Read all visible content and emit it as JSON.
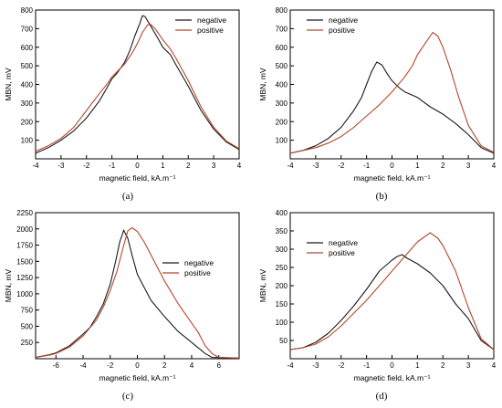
{
  "chart_data": [
    {
      "type": "line",
      "caption": "(a)",
      "xlabel": "magnetic field, kA.m⁻¹",
      "ylabel": "MBN, mV",
      "xlim": [
        -4,
        4
      ],
      "ylim": [
        0,
        800
      ],
      "xticks": [
        -4,
        -3,
        -2,
        -1,
        0,
        1,
        2,
        3,
        4
      ],
      "yticks": [
        100,
        200,
        300,
        400,
        500,
        600,
        700,
        800
      ],
      "legend_position": "top-right",
      "series": [
        {
          "name": "negative",
          "color": "#1a1a1a",
          "x": [
            -4,
            -3.5,
            -3,
            -2.5,
            -2,
            -1.5,
            -1.2,
            -1,
            -0.8,
            -0.5,
            -0.3,
            -0.1,
            0.1,
            0.2,
            0.3,
            0.5,
            0.8,
            1,
            1.3,
            1.5,
            2,
            2.5,
            3,
            3.5,
            4
          ],
          "y": [
            30,
            60,
            100,
            150,
            220,
            310,
            380,
            430,
            460,
            520,
            580,
            660,
            730,
            770,
            765,
            720,
            650,
            600,
            560,
            510,
            390,
            260,
            160,
            90,
            50
          ]
        },
        {
          "name": "positive",
          "color": "#b5472c",
          "x": [
            -4,
            -3.5,
            -3,
            -2.5,
            -2,
            -1.5,
            -1.2,
            -1,
            -0.5,
            -0.2,
            0,
            0.2,
            0.4,
            0.5,
            0.7,
            1,
            1.3,
            1.5,
            2,
            2.5,
            3,
            3.5,
            4
          ],
          "y": [
            40,
            70,
            110,
            170,
            260,
            350,
            400,
            440,
            510,
            570,
            620,
            680,
            720,
            725,
            700,
            640,
            590,
            545,
            420,
            280,
            170,
            95,
            55
          ]
        }
      ]
    },
    {
      "type": "line",
      "caption": "(b)",
      "xlabel": "magnetic field, kA.m⁻¹",
      "ylabel": "MBN, mV",
      "xlim": [
        -4,
        4
      ],
      "ylim": [
        0,
        800
      ],
      "xticks": [
        -4,
        -3,
        -2,
        -1,
        0,
        1,
        2,
        3,
        4
      ],
      "yticks": [
        100,
        200,
        300,
        400,
        500,
        600,
        700,
        800
      ],
      "legend_position": "top-left",
      "series": [
        {
          "name": "negative",
          "color": "#1a1a1a",
          "x": [
            -4,
            -3.5,
            -3,
            -2.5,
            -2,
            -1.5,
            -1.2,
            -1,
            -0.8,
            -0.6,
            -0.4,
            -0.2,
            0,
            0.3,
            0.5,
            1,
            1.5,
            2,
            2.5,
            3,
            3.5,
            4
          ],
          "y": [
            30,
            45,
            70,
            110,
            170,
            260,
            330,
            400,
            470,
            520,
            505,
            460,
            420,
            380,
            360,
            330,
            280,
            240,
            190,
            130,
            60,
            30
          ]
        },
        {
          "name": "positive",
          "color": "#b5472c",
          "x": [
            -4,
            -3.5,
            -3,
            -2.5,
            -2,
            -1.5,
            -1,
            -0.5,
            0,
            0.5,
            0.8,
            1,
            1.3,
            1.6,
            1.8,
            2,
            2.3,
            2.6,
            3,
            3.5,
            4
          ],
          "y": [
            30,
            45,
            60,
            85,
            120,
            170,
            230,
            290,
            360,
            440,
            500,
            560,
            620,
            680,
            660,
            600,
            480,
            340,
            180,
            70,
            35
          ]
        }
      ]
    },
    {
      "type": "line",
      "caption": "(c)",
      "xlabel": "magnetic field, kA.m⁻¹",
      "ylabel": "MBN, mV",
      "xlim": [
        -7.5,
        7.5
      ],
      "ylim": [
        0,
        2250
      ],
      "xticks": [
        -6,
        -4,
        -2,
        0,
        2,
        4,
        6
      ],
      "yticks": [
        250,
        500,
        750,
        1000,
        1250,
        1500,
        1750,
        2000,
        2250
      ],
      "legend_position": "center-right",
      "series": [
        {
          "name": "negative",
          "color": "#1a1a1a",
          "x": [
            -7.5,
            -6.5,
            -6,
            -5,
            -4,
            -3.5,
            -3,
            -2.5,
            -2,
            -1.6,
            -1.3,
            -1,
            -0.7,
            -0.4,
            0,
            0.5,
            1,
            2,
            3,
            4,
            5,
            5.5,
            7.5
          ],
          "y": [
            20,
            60,
            90,
            200,
            380,
            480,
            650,
            850,
            1150,
            1500,
            1800,
            1980,
            1850,
            1600,
            1300,
            1100,
            900,
            650,
            420,
            250,
            80,
            20,
            10
          ]
        },
        {
          "name": "positive",
          "color": "#b5472c",
          "x": [
            -7.5,
            -6.5,
            -6,
            -5,
            -4,
            -3,
            -2.5,
            -2,
            -1.5,
            -1,
            -0.7,
            -0.4,
            -0.2,
            0,
            0.5,
            1,
            2,
            3,
            4,
            4.5,
            5,
            5.5,
            6,
            7.5
          ],
          "y": [
            20,
            55,
            80,
            180,
            350,
            600,
            800,
            1050,
            1350,
            1750,
            1970,
            2020,
            1990,
            1960,
            1800,
            1600,
            1200,
            850,
            550,
            400,
            200,
            80,
            20,
            10
          ]
        }
      ]
    },
    {
      "type": "line",
      "caption": "(d)",
      "xlabel": "magnetic field, kA.m⁻¹",
      "ylabel": "MBN, mV",
      "xlim": [
        -4,
        4
      ],
      "ylim": [
        0,
        400
      ],
      "xticks": [
        -4,
        -3,
        -2,
        -1,
        0,
        1,
        2,
        3,
        4
      ],
      "yticks": [
        50,
        100,
        150,
        200,
        250,
        300,
        350,
        400
      ],
      "legend_position": "top-left",
      "series": [
        {
          "name": "negative",
          "color": "#1a1a1a",
          "x": [
            -4,
            -3.5,
            -3,
            -2.5,
            -2,
            -1.5,
            -1,
            -0.5,
            0,
            0.2,
            0.4,
            0.6,
            1,
            1.5,
            2,
            2.5,
            3,
            3.5,
            4
          ],
          "y": [
            25,
            30,
            45,
            70,
            105,
            145,
            190,
            240,
            270,
            280,
            285,
            275,
            260,
            235,
            200,
            150,
            110,
            50,
            25
          ]
        },
        {
          "name": "positive",
          "color": "#b5472c",
          "x": [
            -4,
            -3.5,
            -3,
            -2.5,
            -2,
            -1.5,
            -1,
            -0.5,
            0,
            0.5,
            1,
            1.3,
            1.5,
            1.8,
            2,
            2.5,
            3,
            3.5,
            4
          ],
          "y": [
            25,
            30,
            40,
            60,
            90,
            125,
            160,
            200,
            240,
            280,
            320,
            335,
            345,
            330,
            310,
            240,
            140,
            55,
            25
          ]
        }
      ]
    }
  ]
}
